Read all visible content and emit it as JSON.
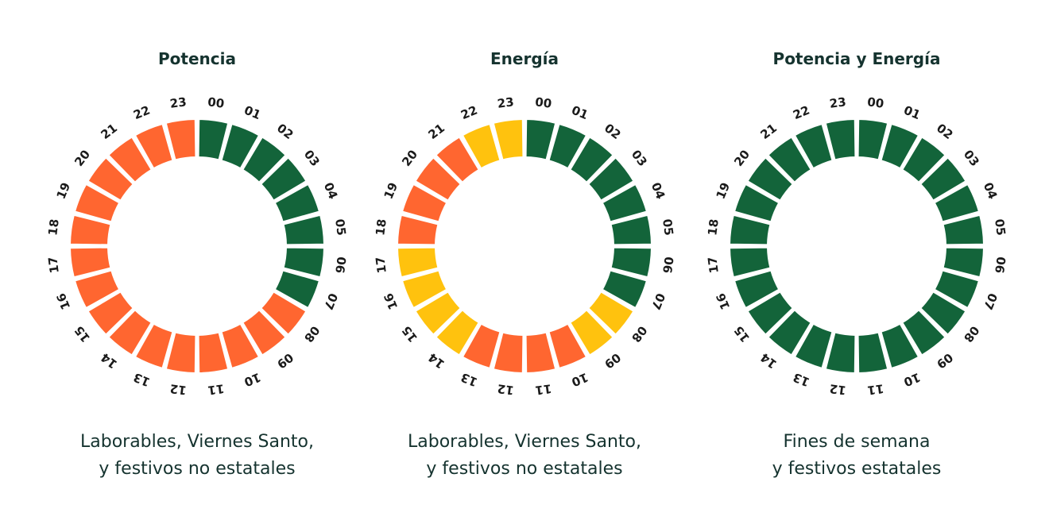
{
  "colors": {
    "green": "#13643a",
    "orange": "#ff6630",
    "yellow": "#ffc20e",
    "text": "#15332f"
  },
  "hour_labels": [
    "00",
    "01",
    "02",
    "03",
    "04",
    "05",
    "06",
    "07",
    "08",
    "09",
    "10",
    "11",
    "12",
    "13",
    "14",
    "15",
    "16",
    "17",
    "18",
    "19",
    "20",
    "21",
    "22",
    "23"
  ],
  "panels": [
    {
      "title": "Potencia",
      "caption": [
        "Laborables, Viernes Santo,",
        "y festivos no estatales"
      ],
      "segments": [
        "green",
        "green",
        "green",
        "green",
        "green",
        "green",
        "green",
        "green",
        "orange",
        "orange",
        "orange",
        "orange",
        "orange",
        "orange",
        "orange",
        "orange",
        "orange",
        "orange",
        "orange",
        "orange",
        "orange",
        "orange",
        "orange",
        "orange"
      ]
    },
    {
      "title": "Energía",
      "caption": [
        "Laborables, Viernes Santo,",
        "y festivos no estatales"
      ],
      "segments": [
        "green",
        "green",
        "green",
        "green",
        "green",
        "green",
        "green",
        "green",
        "yellow",
        "yellow",
        "orange",
        "orange",
        "orange",
        "orange",
        "yellow",
        "yellow",
        "yellow",
        "yellow",
        "orange",
        "orange",
        "orange",
        "orange",
        "yellow",
        "yellow"
      ]
    },
    {
      "title": "Potencia y Energía",
      "caption": [
        "Fines de semana",
        "y festivos estatales"
      ],
      "segments": [
        "green",
        "green",
        "green",
        "green",
        "green",
        "green",
        "green",
        "green",
        "green",
        "green",
        "green",
        "green",
        "green",
        "green",
        "green",
        "green",
        "green",
        "green",
        "green",
        "green",
        "green",
        "green",
        "green",
        "green"
      ]
    }
  ]
}
